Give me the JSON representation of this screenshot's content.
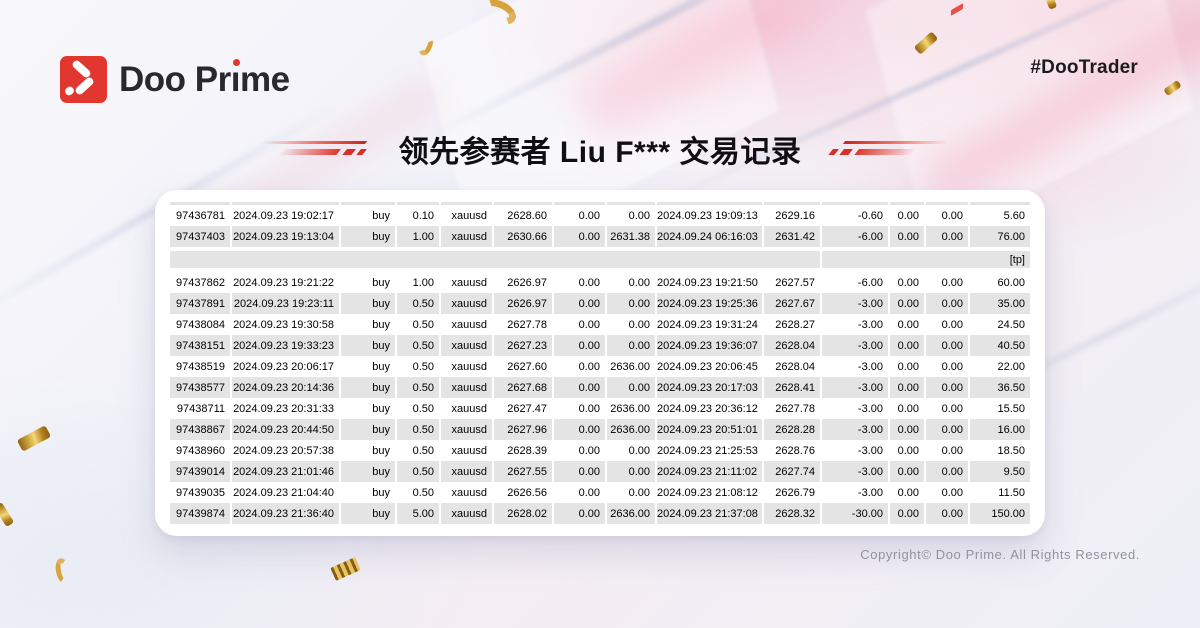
{
  "header": {
    "logo_text": "Doo Prime",
    "hashtag": "#DooTrader"
  },
  "title": {
    "text": "领先参赛者 Liu F*** 交易记录"
  },
  "table": {
    "rows": [
      [
        "97436781",
        "2024.09.23 19:02:17",
        "buy",
        "0.10",
        "xauusd",
        "2628.60",
        "0.00",
        "0.00",
        "2024.09.23 19:09:13",
        "2629.16",
        "-0.60",
        "0.00",
        "0.00",
        "5.60"
      ],
      [
        "97437403",
        "2024.09.23 19:13:04",
        "buy",
        "1.00",
        "xauusd",
        "2630.66",
        "0.00",
        "2631.38",
        "2024.09.24 06:16:03",
        "2631.42",
        "-6.00",
        "0.00",
        "0.00",
        "76.00"
      ],
      {
        "comment": "[tp]"
      },
      [
        "97437862",
        "2024.09.23 19:21:22",
        "buy",
        "1.00",
        "xauusd",
        "2626.97",
        "0.00",
        "0.00",
        "2024.09.23 19:21:50",
        "2627.57",
        "-6.00",
        "0.00",
        "0.00",
        "60.00"
      ],
      [
        "97437891",
        "2024.09.23 19:23:11",
        "buy",
        "0.50",
        "xauusd",
        "2626.97",
        "0.00",
        "0.00",
        "2024.09.23 19:25:36",
        "2627.67",
        "-3.00",
        "0.00",
        "0.00",
        "35.00"
      ],
      [
        "97438084",
        "2024.09.23 19:30:58",
        "buy",
        "0.50",
        "xauusd",
        "2627.78",
        "0.00",
        "0.00",
        "2024.09.23 19:31:24",
        "2628.27",
        "-3.00",
        "0.00",
        "0.00",
        "24.50"
      ],
      [
        "97438151",
        "2024.09.23 19:33:23",
        "buy",
        "0.50",
        "xauusd",
        "2627.23",
        "0.00",
        "0.00",
        "2024.09.23 19:36:07",
        "2628.04",
        "-3.00",
        "0.00",
        "0.00",
        "40.50"
      ],
      [
        "97438519",
        "2024.09.23 20:06:17",
        "buy",
        "0.50",
        "xauusd",
        "2627.60",
        "0.00",
        "2636.00",
        "2024.09.23 20:06:45",
        "2628.04",
        "-3.00",
        "0.00",
        "0.00",
        "22.00"
      ],
      [
        "97438577",
        "2024.09.23 20:14:36",
        "buy",
        "0.50",
        "xauusd",
        "2627.68",
        "0.00",
        "0.00",
        "2024.09.23 20:17:03",
        "2628.41",
        "-3.00",
        "0.00",
        "0.00",
        "36.50"
      ],
      [
        "97438711",
        "2024.09.23 20:31:33",
        "buy",
        "0.50",
        "xauusd",
        "2627.47",
        "0.00",
        "2636.00",
        "2024.09.23 20:36:12",
        "2627.78",
        "-3.00",
        "0.00",
        "0.00",
        "15.50"
      ],
      [
        "97438867",
        "2024.09.23 20:44:50",
        "buy",
        "0.50",
        "xauusd",
        "2627.96",
        "0.00",
        "2636.00",
        "2024.09.23 20:51:01",
        "2628.28",
        "-3.00",
        "0.00",
        "0.00",
        "16.00"
      ],
      [
        "97438960",
        "2024.09.23 20:57:38",
        "buy",
        "0.50",
        "xauusd",
        "2628.39",
        "0.00",
        "0.00",
        "2024.09.23 21:25:53",
        "2628.76",
        "-3.00",
        "0.00",
        "0.00",
        "18.50"
      ],
      [
        "97439014",
        "2024.09.23 21:01:46",
        "buy",
        "0.50",
        "xauusd",
        "2627.55",
        "0.00",
        "0.00",
        "2024.09.23 21:11:02",
        "2627.74",
        "-3.00",
        "0.00",
        "0.00",
        "9.50"
      ],
      [
        "97439035",
        "2024.09.23 21:04:40",
        "buy",
        "0.50",
        "xauusd",
        "2626.56",
        "0.00",
        "0.00",
        "2024.09.23 21:08:12",
        "2626.79",
        "-3.00",
        "0.00",
        "0.00",
        "11.50"
      ],
      [
        "97439874",
        "2024.09.23 21:36:40",
        "buy",
        "5.00",
        "xauusd",
        "2628.02",
        "0.00",
        "2636.00",
        "2024.09.23 21:37:08",
        "2628.32",
        "-30.00",
        "0.00",
        "0.00",
        "150.00"
      ]
    ]
  },
  "footer": {
    "copyright": "Copyright© Doo Prime. All Rights Reserved."
  },
  "colors": {
    "brand_red": "#e2372e",
    "row_alt_gray": "#e4e4e4",
    "gold": "#d9a33c"
  }
}
